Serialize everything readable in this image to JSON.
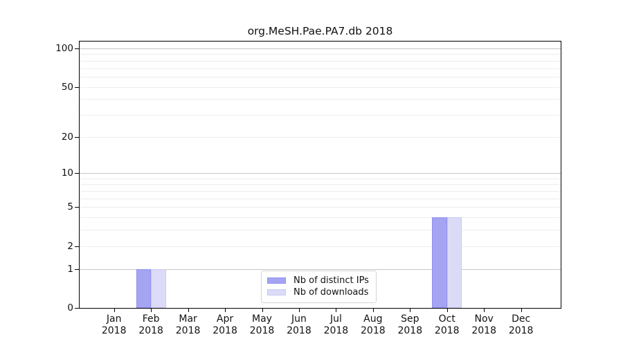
{
  "chart_data": {
    "type": "bar",
    "title": "org.MeSH.Pae.PA7.db 2018",
    "x_axis": {
      "months": [
        "Jan",
        "Feb",
        "Mar",
        "Apr",
        "May",
        "Jun",
        "Jul",
        "Aug",
        "Sep",
        "Oct",
        "Nov",
        "Dec"
      ],
      "year": "2018"
    },
    "y_axis": {
      "scale": "log1p",
      "labeled_ticks": [
        0,
        1,
        2,
        5,
        10,
        20,
        50,
        100
      ],
      "major_gridlines": [
        1,
        10,
        100
      ],
      "minor_gridlines": [
        2,
        3,
        4,
        5,
        6,
        7,
        8,
        9,
        20,
        30,
        40,
        50,
        60,
        70,
        80,
        90
      ],
      "max": 100,
      "min": 0
    },
    "series": [
      {
        "name": "Nb of distinct IPs",
        "color": "#a5a4f3",
        "edge_color": "#9290ee",
        "values": [
          0,
          1,
          0,
          0,
          0,
          0,
          0,
          0,
          0,
          4,
          0,
          0
        ]
      },
      {
        "name": "Nb of downloads",
        "color": "#dbdbf8",
        "edge_color": "#c9c9f2",
        "values": [
          0,
          1,
          0,
          0,
          0,
          0,
          0,
          0,
          0,
          4,
          0,
          0
        ]
      }
    ],
    "legend": {
      "position": "bottom-center",
      "entries": [
        "Nb of distinct IPs",
        "Nb of downloads"
      ]
    },
    "grid": true,
    "background": "#ffffff",
    "axis_color": "#000000"
  }
}
